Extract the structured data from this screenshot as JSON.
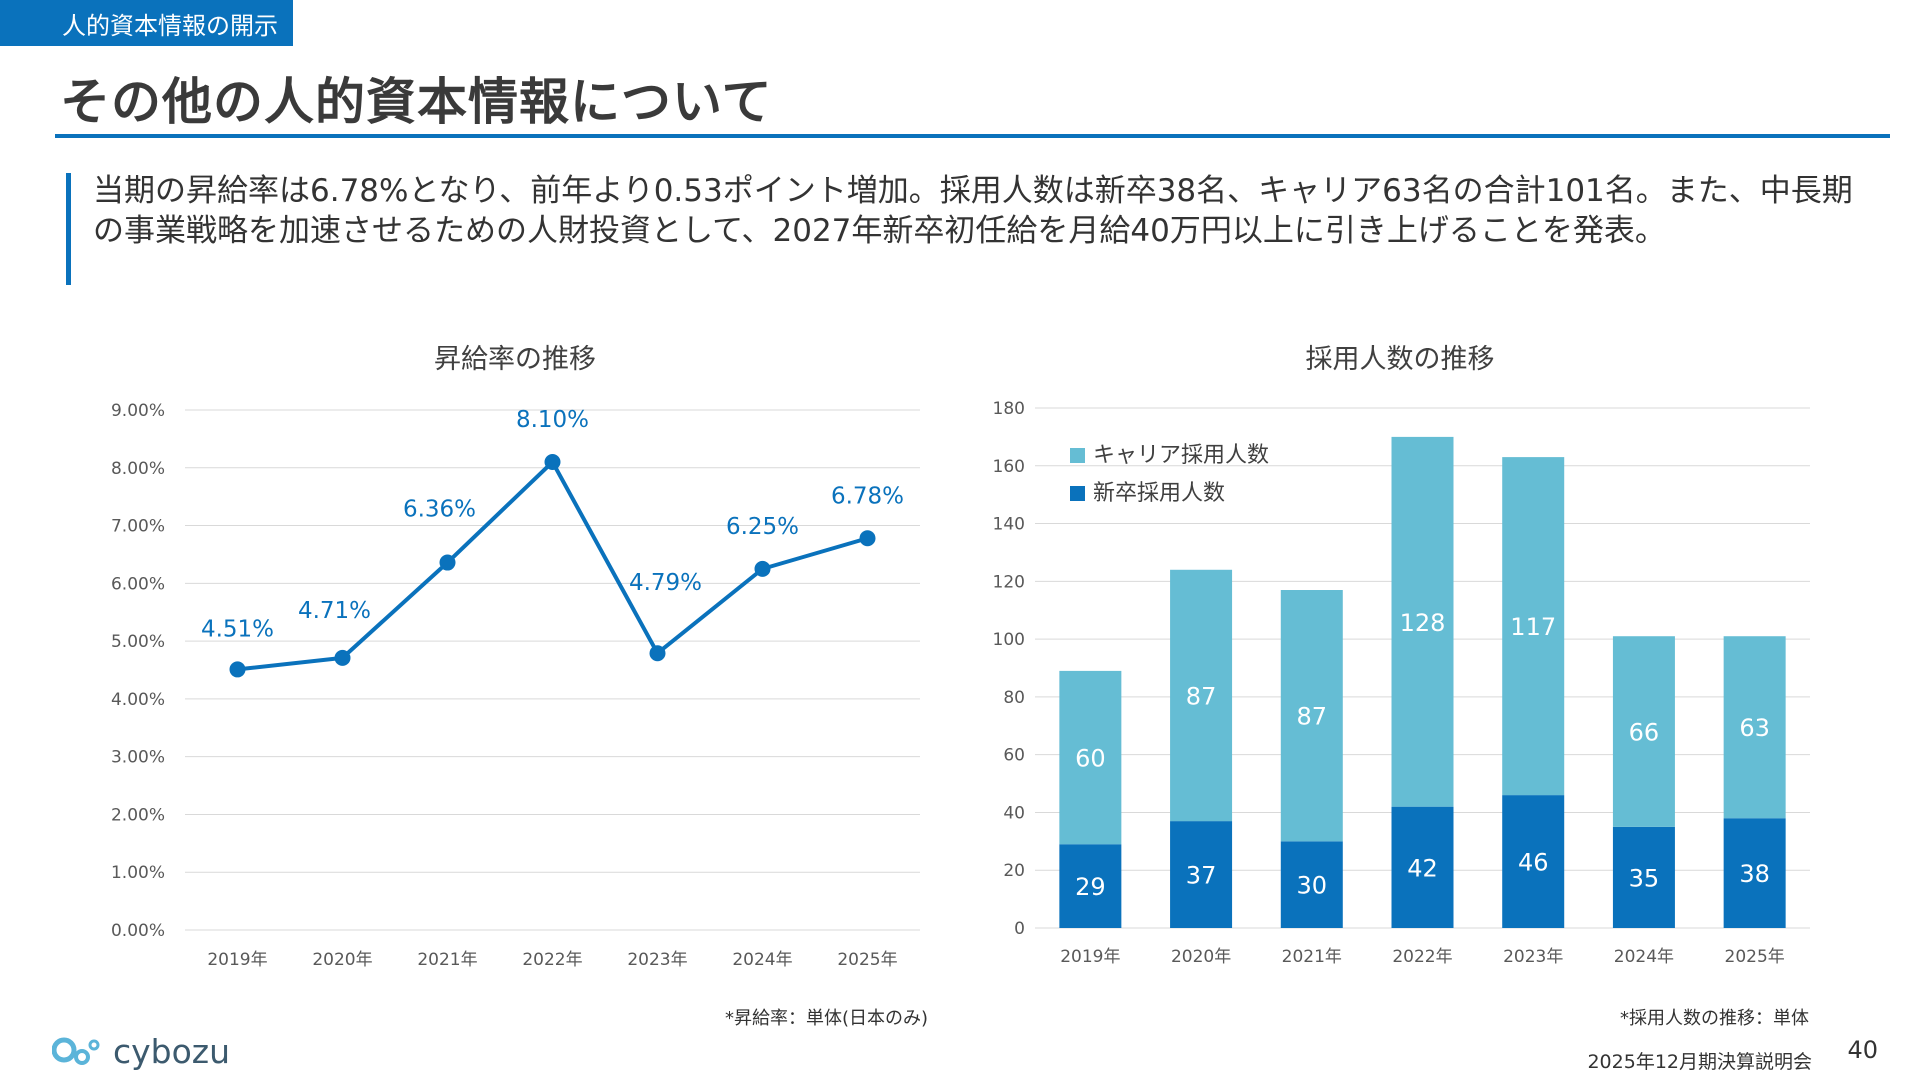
{
  "header": {
    "section_tag": "人的資本情報の開示",
    "title": "その他の人的資本情報について"
  },
  "summary": "当期の昇給率は6.78%となり、前年より0.53ポイント増加。採用人数は新卒38名、キャリア63名の合計101名。また、中長期の事業戦略を加速させるための人財投資として、2027年新卒初任給を月給40万円以上に引き上げることを発表。",
  "colors": {
    "brand": "#0a72bc",
    "line_series": "#0a72bc",
    "bar_career": "#65bdd4",
    "bar_new_grad": "#0a72bc"
  },
  "chart_data": [
    {
      "type": "line",
      "title": "昇給率の推移",
      "x": [
        "2019年",
        "2020年",
        "2021年",
        "2022年",
        "2023年",
        "2024年",
        "2025年"
      ],
      "values": [
        4.51,
        4.71,
        6.36,
        8.1,
        4.79,
        6.25,
        6.78
      ],
      "data_labels": [
        "4.51%",
        "4.71%",
        "6.36%",
        "8.10%",
        "4.79%",
        "6.25%",
        "6.78%"
      ],
      "yticks": [
        "0.00%",
        "1.00%",
        "2.00%",
        "3.00%",
        "4.00%",
        "5.00%",
        "6.00%",
        "7.00%",
        "8.00%",
        "9.00%"
      ],
      "ylim": [
        0,
        9
      ],
      "grid": true,
      "footnote": "*昇給率：単体(日本のみ)"
    },
    {
      "type": "bar",
      "stacked": true,
      "title": "採用人数の推移",
      "categories": [
        "2019年",
        "2020年",
        "2021年",
        "2022年",
        "2023年",
        "2024年",
        "2025年"
      ],
      "series": [
        {
          "name": "新卒採用人数",
          "values": [
            29,
            37,
            30,
            42,
            46,
            35,
            38
          ]
        },
        {
          "name": "キャリア採用人数",
          "values": [
            60,
            87,
            87,
            128,
            117,
            66,
            63
          ]
        }
      ],
      "yticks": [
        "0",
        "20",
        "40",
        "60",
        "80",
        "100",
        "120",
        "140",
        "160",
        "180"
      ],
      "ylim": [
        0,
        180
      ],
      "grid": true,
      "legend": "top-left",
      "footnote": "*採用人数の推移：単体"
    }
  ],
  "footer": {
    "logo": "cybozu",
    "event": "2025年12月期決算説明会",
    "page": "40"
  }
}
